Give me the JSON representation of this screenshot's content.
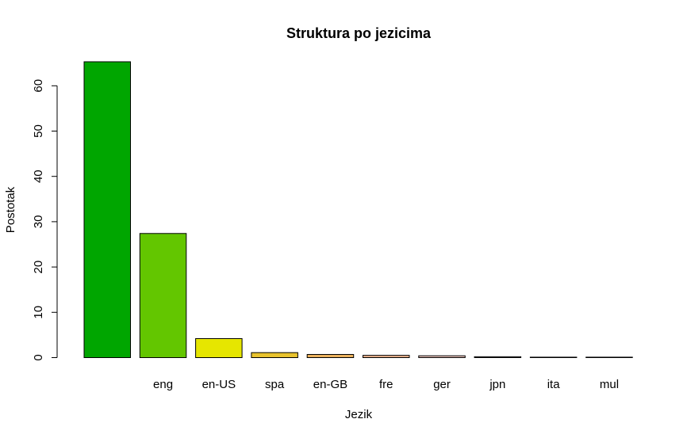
{
  "chart_data": {
    "type": "bar",
    "title": "Struktura po jezicima",
    "xlabel": "Jezik",
    "ylabel": "Postotak",
    "ylim": [
      0,
      65.5
    ],
    "yticks": [
      0,
      10,
      20,
      30,
      40,
      50,
      60
    ],
    "categories": [
      "",
      "eng",
      "en-US",
      "spa",
      "en-GB",
      "fre",
      "ger",
      "jpn",
      "ita",
      "mul"
    ],
    "values": [
      65.3,
      27.4,
      4.2,
      1.1,
      0.7,
      0.5,
      0.4,
      0.2,
      0.1,
      0.1
    ],
    "colors": [
      "#00A600",
      "#63C600",
      "#E6E600",
      "#E8C32E",
      "#EBB25E",
      "#EDB48E",
      "#F0C9C0",
      "#F2F2F2",
      "#F2F2F2",
      "#F2F2F2"
    ],
    "grid": false,
    "legend": "none"
  }
}
